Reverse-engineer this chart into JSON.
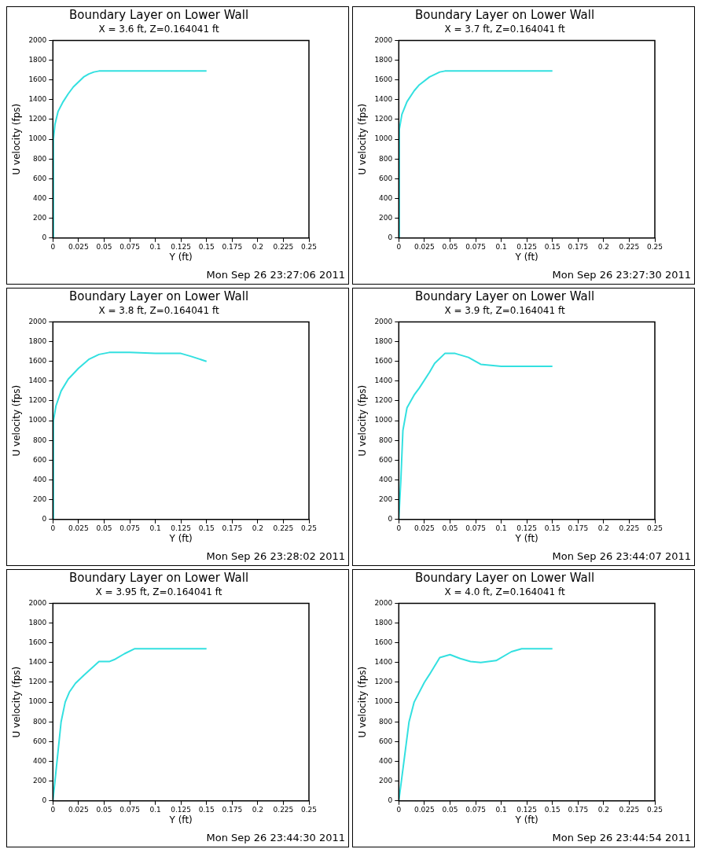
{
  "chart_data": [
    {
      "type": "line",
      "title": "Boundary Layer on Lower Wall",
      "subtitle": "X = 3.6 ft, Z=0.164041 ft",
      "xlabel": "Y (ft)",
      "ylabel": "U velocity (fps)",
      "annotations": [
        "Mon Sep 26 23:27:06 2011"
      ],
      "color": "#33e0e0",
      "xlim": [
        0,
        0.25
      ],
      "xticks": [
        0,
        0.025,
        0.05,
        0.075,
        0.1,
        0.125,
        0.15,
        0.175,
        0.2,
        0.225,
        0.25
      ],
      "ylim": [
        0,
        2000
      ],
      "yticks": [
        0,
        200,
        400,
        600,
        800,
        1000,
        1200,
        1400,
        1600,
        1800,
        2000
      ],
      "grid": false,
      "x": [
        0,
        0.0005,
        0.002,
        0.005,
        0.01,
        0.015,
        0.02,
        0.025,
        0.03,
        0.035,
        0.04,
        0.045,
        0.15
      ],
      "values": [
        0,
        1000,
        1150,
        1280,
        1380,
        1460,
        1530,
        1580,
        1630,
        1660,
        1680,
        1690,
        1690
      ]
    },
    {
      "type": "line",
      "title": "Boundary Layer on Lower Wall",
      "subtitle": "X = 3.7 ft, Z=0.164041 ft",
      "xlabel": "Y (ft)",
      "ylabel": "U velocity (fps)",
      "annotations": [
        "Mon Sep 26 23:27:30 2011"
      ],
      "color": "#33e0e0",
      "xlim": [
        0,
        0.25
      ],
      "xticks": [
        0,
        0.025,
        0.05,
        0.075,
        0.1,
        0.125,
        0.15,
        0.175,
        0.2,
        0.225,
        0.25
      ],
      "ylim": [
        0,
        2000
      ],
      "yticks": [
        0,
        200,
        400,
        600,
        800,
        1000,
        1200,
        1400,
        1600,
        1800,
        2000
      ],
      "grid": false,
      "x": [
        0,
        0.0005,
        0.003,
        0.008,
        0.015,
        0.02,
        0.03,
        0.04,
        0.045,
        0.15
      ],
      "values": [
        0,
        1100,
        1250,
        1380,
        1490,
        1550,
        1630,
        1680,
        1690,
        1690
      ]
    },
    {
      "type": "line",
      "title": "Boundary Layer on Lower Wall",
      "subtitle": "X = 3.8 ft, Z=0.164041 ft",
      "xlabel": "Y (ft)",
      "ylabel": "U velocity (fps)",
      "annotations": [
        "Mon Sep 26 23:28:02 2011"
      ],
      "color": "#33e0e0",
      "xlim": [
        0,
        0.25
      ],
      "xticks": [
        0,
        0.025,
        0.05,
        0.075,
        0.1,
        0.125,
        0.15,
        0.175,
        0.2,
        0.225,
        0.25
      ],
      "ylim": [
        0,
        2000
      ],
      "yticks": [
        0,
        200,
        400,
        600,
        800,
        1000,
        1200,
        1400,
        1600,
        1800,
        2000
      ],
      "grid": false,
      "x": [
        0,
        0.0005,
        0.003,
        0.008,
        0.015,
        0.025,
        0.035,
        0.045,
        0.055,
        0.075,
        0.1,
        0.125,
        0.135,
        0.15
      ],
      "values": [
        0,
        1000,
        1150,
        1300,
        1420,
        1530,
        1620,
        1670,
        1690,
        1690,
        1680,
        1680,
        1650,
        1600
      ]
    },
    {
      "type": "line",
      "title": "Boundary Layer on Lower Wall",
      "subtitle": "X = 3.9 ft, Z=0.164041 ft",
      "xlabel": "Y (ft)",
      "ylabel": "U velocity (fps)",
      "annotations": [
        "Mon Sep 26 23:44:07 2011"
      ],
      "color": "#33e0e0",
      "xlim": [
        0,
        0.25
      ],
      "xticks": [
        0,
        0.025,
        0.05,
        0.075,
        0.1,
        0.125,
        0.15,
        0.175,
        0.2,
        0.225,
        0.25
      ],
      "ylim": [
        0,
        2000
      ],
      "yticks": [
        0,
        200,
        400,
        600,
        800,
        1000,
        1200,
        1400,
        1600,
        1800,
        2000
      ],
      "grid": false,
      "x": [
        0,
        0.002,
        0.004,
        0.008,
        0.015,
        0.02,
        0.03,
        0.035,
        0.045,
        0.055,
        0.068,
        0.08,
        0.1,
        0.15
      ],
      "values": [
        0,
        400,
        900,
        1130,
        1260,
        1330,
        1490,
        1580,
        1680,
        1680,
        1640,
        1570,
        1550,
        1550
      ]
    },
    {
      "type": "line",
      "title": "Boundary Layer on Lower Wall",
      "subtitle": "X = 3.95 ft, Z=0.164041 ft",
      "xlabel": "Y (ft)",
      "ylabel": "U velocity (fps)",
      "annotations": [
        "Mon Sep 26 23:44:30 2011"
      ],
      "color": "#33e0e0",
      "xlim": [
        0,
        0.25
      ],
      "xticks": [
        0,
        0.025,
        0.05,
        0.075,
        0.1,
        0.125,
        0.15,
        0.175,
        0.2,
        0.225,
        0.25
      ],
      "ylim": [
        0,
        2000
      ],
      "yticks": [
        0,
        200,
        400,
        600,
        800,
        1000,
        1200,
        1400,
        1600,
        1800,
        2000
      ],
      "grid": false,
      "x": [
        0,
        0.003,
        0.006,
        0.008,
        0.012,
        0.016,
        0.022,
        0.03,
        0.045,
        0.055,
        0.06,
        0.07,
        0.08,
        0.15
      ],
      "values": [
        0,
        300,
        600,
        800,
        1000,
        1100,
        1190,
        1270,
        1410,
        1410,
        1430,
        1490,
        1540,
        1540
      ]
    },
    {
      "type": "line",
      "title": "Boundary Layer on Lower Wall",
      "subtitle": "X = 4.0 ft, Z=0.164041 ft",
      "xlabel": "Y (ft)",
      "ylabel": "U velocity (fps)",
      "annotations": [
        "Mon Sep 26 23:44:54 2011"
      ],
      "color": "#33e0e0",
      "xlim": [
        0,
        0.25
      ],
      "xticks": [
        0,
        0.025,
        0.05,
        0.075,
        0.1,
        0.125,
        0.15,
        0.175,
        0.2,
        0.225,
        0.25
      ],
      "ylim": [
        0,
        2000
      ],
      "yticks": [
        0,
        200,
        400,
        600,
        800,
        1000,
        1200,
        1400,
        1600,
        1800,
        2000
      ],
      "grid": false,
      "x": [
        0,
        0.005,
        0.01,
        0.015,
        0.025,
        0.03,
        0.04,
        0.05,
        0.06,
        0.07,
        0.08,
        0.095,
        0.11,
        0.12,
        0.15
      ],
      "values": [
        0,
        400,
        800,
        1000,
        1200,
        1280,
        1450,
        1480,
        1440,
        1410,
        1400,
        1420,
        1510,
        1540,
        1540
      ]
    }
  ]
}
